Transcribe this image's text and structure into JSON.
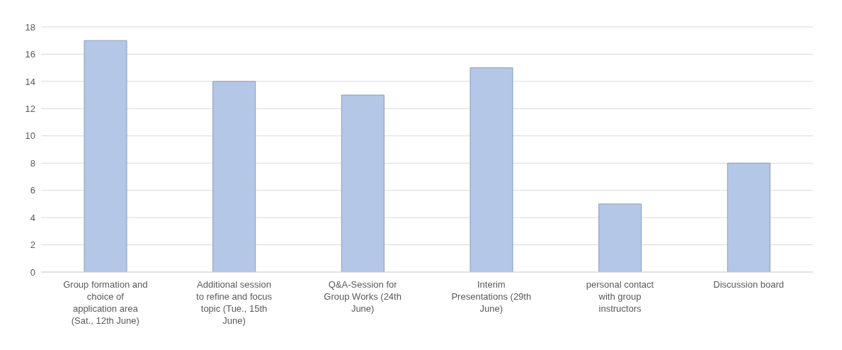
{
  "chart_data": {
    "type": "bar",
    "categories": [
      "Group formation and choice of application area (Sat., 12th June)",
      "Additional session to refine and focus topic (Tue., 15th June)",
      "Q&A-Session for Group Works (24th June)",
      "Interim Presentations (29th June)",
      "personal contact with group instructors",
      "Discussion board"
    ],
    "values": [
      17,
      14,
      13,
      15,
      5,
      8
    ],
    "color": "#b4c7e7",
    "ylim": [
      0,
      18
    ],
    "yticks": [
      0,
      2,
      4,
      6,
      8,
      10,
      12,
      14,
      16,
      18
    ],
    "grid": "y"
  }
}
